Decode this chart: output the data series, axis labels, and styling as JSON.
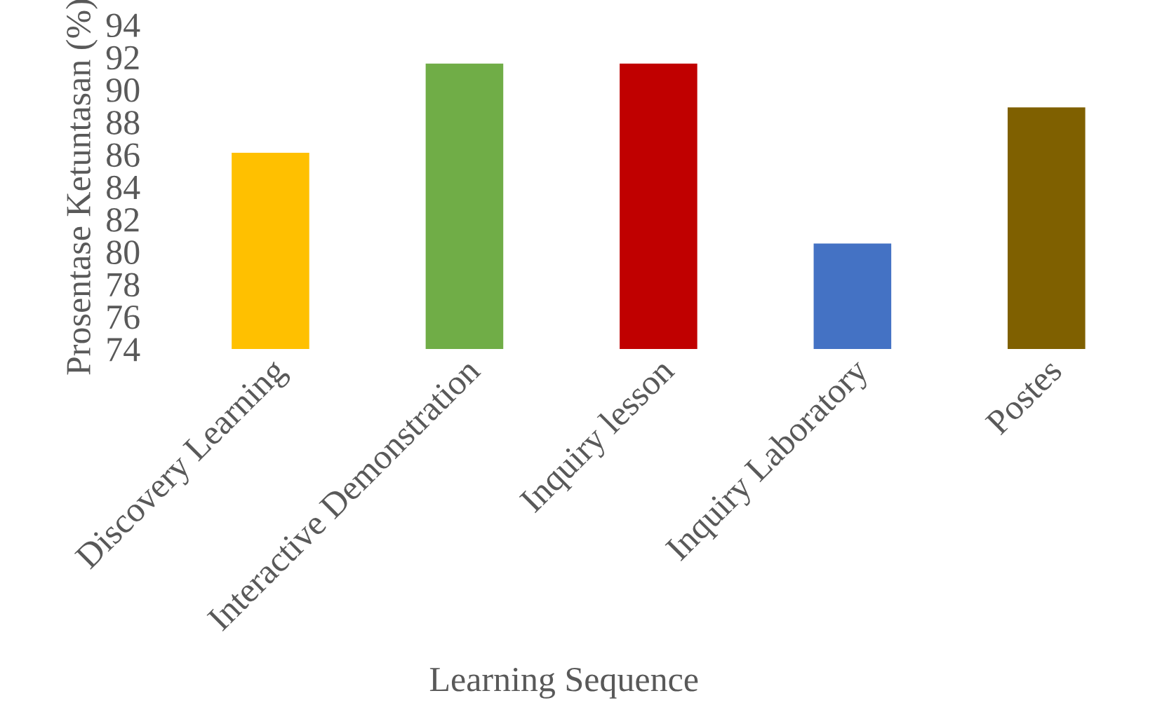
{
  "chart_data": {
    "type": "bar",
    "categories": [
      "Discovery Learning",
      "Interactive Demonstration",
      "Inquiry lesson",
      "Inquiry Laboratory",
      "Postes"
    ],
    "values": [
      86.1,
      91.6,
      91.6,
      80.5,
      88.9
    ],
    "colors": [
      "#ffc000",
      "#70ad47",
      "#c00000",
      "#4472c4",
      "#7f6000"
    ],
    "xlabel": "Learning Sequence",
    "ylabel": "Prosentase Ketuntasan (%)",
    "ylim": [
      74,
      94
    ],
    "yticks": [
      74,
      76,
      78,
      80,
      82,
      84,
      86,
      88,
      90,
      92,
      94
    ],
    "grid": false,
    "legend": false
  }
}
